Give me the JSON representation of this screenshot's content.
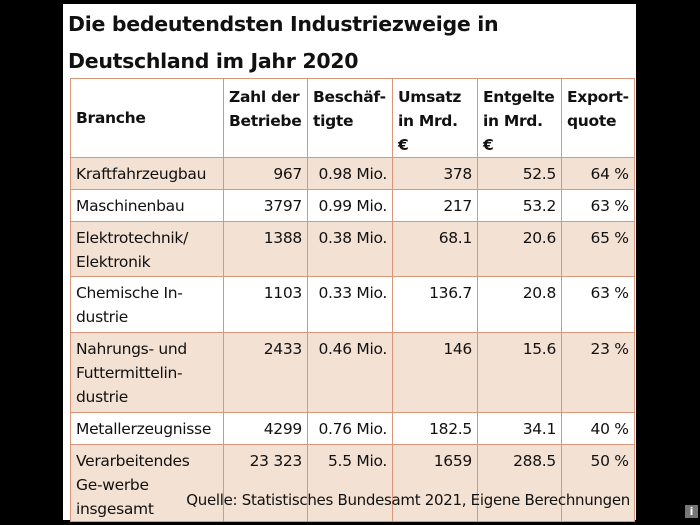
{
  "title": "Die bedeutendsten Industriezweige in Deutschland im Jahr 2020",
  "headers": [
    "Branche",
    "Zahl der Betriebe",
    "Beschäf-tigte",
    "Umsatz in Mrd. €",
    "Entgelte in Mrd. €",
    "Export-quote"
  ],
  "rows": [
    [
      "Kraftfahrzeugbau",
      "967",
      "0.98 Mio.",
      "378",
      "52.5",
      "64 %"
    ],
    [
      "Maschinenbau",
      "3797",
      "0.99 Mio.",
      "217",
      "53.2",
      "63 %"
    ],
    [
      "Elektrotechnik/ Elektronik",
      "1388",
      "0.38 Mio.",
      "68.1",
      "20.6",
      "65 %"
    ],
    [
      "Chemische In-dustrie",
      "1103",
      "0.33 Mio.",
      "136.7",
      "20.8",
      "63 %"
    ],
    [
      "Nahrungs- und Futtermittelin-dustrie",
      "2433",
      "0.46 Mio.",
      "146",
      "15.6",
      "23 %"
    ],
    [
      "Metallerzeugnisse",
      "4299",
      "0.76 Mio.",
      "182.5",
      "34.1",
      "40 %"
    ],
    [
      "Verarbeitendes Ge-werbe insgesamt",
      "23 323",
      "5.5 Mio.",
      "1659",
      "288.5",
      "50 %"
    ]
  ],
  "source": "Quelle: Statistisches Bundesamt 2021, Eigene Berechnungen",
  "info_icon": "i",
  "colors": {
    "row_shade": "#f3e1d4",
    "border": "#d9967a"
  }
}
